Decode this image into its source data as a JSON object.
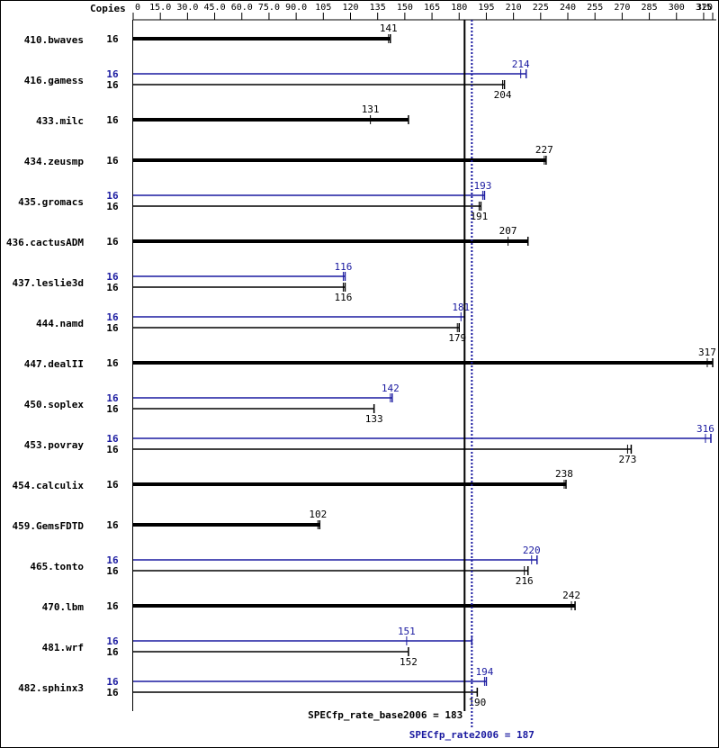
{
  "chart_data": {
    "type": "bar",
    "orientation": "horizontal",
    "copies_header": "Copies",
    "categories": [
      "410.bwaves",
      "416.gamess",
      "433.milc",
      "434.zeusmp",
      "435.gromacs",
      "436.cactusADM",
      "437.leslie3d",
      "444.namd",
      "447.dealII",
      "450.soplex",
      "453.povray",
      "454.calculix",
      "459.GemsFDTD",
      "465.tonto",
      "470.lbm",
      "481.wrf",
      "482.sphinx3"
    ],
    "xlim": [
      0,
      320
    ],
    "xticks": [
      0,
      {
        "value": 15,
        "label": "15.0"
      },
      {
        "value": 30,
        "label": "30.0"
      },
      {
        "value": 45,
        "label": "45.0"
      },
      {
        "value": 60,
        "label": "60.0"
      },
      {
        "value": 75,
        "label": "75.0"
      },
      {
        "value": 90,
        "label": "90.0"
      },
      105,
      120,
      135,
      150,
      165,
      180,
      195,
      210,
      225,
      240,
      255,
      270,
      285,
      300,
      315,
      320
    ],
    "series": [
      {
        "color": "#1a1aa0",
        "copies": [
          null,
          16,
          null,
          null,
          16,
          null,
          16,
          16,
          null,
          16,
          16,
          null,
          null,
          16,
          null,
          16,
          16
        ],
        "values": [
          null,
          214,
          null,
          null,
          193,
          null,
          116,
          181,
          null,
          142,
          316,
          null,
          null,
          220,
          null,
          151,
          194
        ],
        "run_max": [
          null,
          217,
          null,
          null,
          194,
          null,
          117,
          183,
          null,
          143,
          319,
          null,
          null,
          223,
          null,
          187,
          195
        ]
      },
      {
        "color": "#000000",
        "copies": [
          16,
          16,
          16,
          16,
          16,
          16,
          16,
          16,
          16,
          16,
          16,
          16,
          16,
          16,
          16,
          16,
          16
        ],
        "values": [
          141,
          204,
          131,
          227,
          191,
          207,
          116,
          179,
          317,
          133,
          273,
          238,
          102,
          216,
          242,
          152,
          190
        ],
        "run_max": [
          142,
          205,
          152,
          228,
          192,
          218,
          117,
          180,
          320,
          133,
          275,
          239,
          103,
          218,
          244,
          152,
          190
        ]
      }
    ],
    "reference_lines": [
      {
        "label": "SPECfp_rate_base2006 = 183",
        "value": 183,
        "color": "#000000",
        "dashed": false
      },
      {
        "label": "SPECfp_rate2006 = 187",
        "value": 187,
        "color": "#1a1aa0",
        "dashed": true
      }
    ]
  }
}
